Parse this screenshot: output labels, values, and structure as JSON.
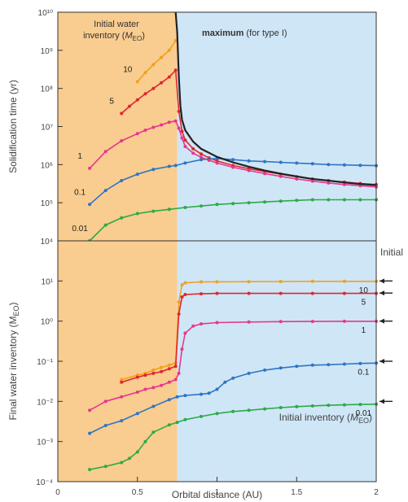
{
  "chart_data": [
    {
      "type": "line",
      "panel": "top",
      "ylabel": "Solidification time (yr)",
      "xlabel": "",
      "xlim": [
        0,
        2
      ],
      "yscale": "log",
      "ylim": [
        10000,
        10000000000
      ],
      "y_tick_labels": [
        "10⁴",
        "10⁵",
        "10⁶",
        "10⁷",
        "10⁸",
        "10⁹",
        "10¹⁰"
      ],
      "shaded_regions": [
        {
          "x": [
            0,
            0.75
          ],
          "color": "#f9cc8f"
        },
        {
          "x": [
            0.75,
            2
          ],
          "color": "#cfe6f6"
        }
      ],
      "annotations": {
        "region_label_line1": "Initial water",
        "region_label_line2": "inventory (",
        "region_label_unit": "M",
        "region_label_sub": "EO",
        "region_label_close": ")",
        "max_bold": "maximum",
        "max_rest": " (for type I)"
      },
      "series": [
        {
          "name": "10",
          "color": "#f2a01e",
          "x": [
            0.5,
            0.55,
            0.6,
            0.65,
            0.7,
            0.74
          ],
          "y": [
            150000000,
            260000000,
            420000000,
            650000000,
            1000000000,
            1800000000
          ]
        },
        {
          "name": "5",
          "color": "#e0262e",
          "x": [
            0.4,
            0.45,
            0.5,
            0.55,
            0.6,
            0.65,
            0.7,
            0.74,
            0.76,
            0.78,
            0.8,
            0.85,
            0.9,
            0.95,
            1.0,
            1.1,
            1.2,
            1.3,
            1.4,
            1.5,
            1.6,
            1.7,
            1.8,
            1.9,
            2.0
          ],
          "y": [
            22000000,
            34000000,
            50000000,
            72000000,
            100000000,
            140000000,
            200000000,
            300000000,
            25000000,
            7500000,
            4400000,
            2600000,
            1900000,
            1500000,
            1250000,
            950000,
            780000,
            660000,
            560000,
            480000,
            420000,
            380000,
            350000,
            320000,
            300000
          ]
        },
        {
          "name": "1",
          "color": "#e8368e",
          "x": [
            0.2,
            0.3,
            0.4,
            0.5,
            0.55,
            0.6,
            0.65,
            0.7,
            0.74,
            0.76,
            0.78,
            0.8,
            0.85,
            0.9,
            0.95,
            1.0,
            1.1,
            1.2,
            1.3,
            1.4,
            1.5,
            1.6,
            1.7,
            1.8,
            1.9,
            2.0
          ],
          "y": [
            800000,
            2200000,
            4200000,
            6500000,
            8000000,
            9500000,
            11000000,
            13000000,
            14000000,
            9000000,
            5000000,
            3000000,
            2000000,
            1550000,
            1300000,
            1100000,
            850000,
            700000,
            580000,
            490000,
            420000,
            370000,
            330000,
            300000,
            280000,
            260000
          ]
        },
        {
          "name": "0.1",
          "color": "#2f75c3",
          "x": [
            0.2,
            0.3,
            0.4,
            0.5,
            0.6,
            0.7,
            0.74,
            0.8,
            0.9,
            1.0,
            1.1,
            1.2,
            1.3,
            1.4,
            1.5,
            1.6,
            1.7,
            1.8,
            1.9,
            2.0
          ],
          "y": [
            90000,
            210000,
            380000,
            560000,
            750000,
            900000,
            950000,
            1100000,
            1350000,
            1450000,
            1350000,
            1250000,
            1200000,
            1150000,
            1100000,
            1050000,
            1000000,
            980000,
            960000,
            940000
          ]
        },
        {
          "name": "0.01",
          "color": "#2bab45",
          "x": [
            0.2,
            0.3,
            0.4,
            0.5,
            0.6,
            0.7,
            0.8,
            0.9,
            1.0,
            1.1,
            1.2,
            1.3,
            1.4,
            1.5,
            1.6,
            1.7,
            1.8,
            1.9,
            2.0
          ],
          "y": [
            10000,
            26000,
            40000,
            52000,
            60000,
            67000,
            75000,
            82000,
            90000,
            95000,
            100000,
            105000,
            110000,
            115000,
            120000,
            120000,
            120000,
            120000,
            120000
          ]
        },
        {
          "name": "",
          "role": "maximum",
          "color": "#222222",
          "x": [
            0.74,
            0.75,
            0.76,
            0.77,
            0.78,
            0.8,
            0.85,
            0.9,
            1.0,
            1.1,
            1.2,
            1.3,
            1.4,
            1.5,
            1.6,
            1.7,
            1.8,
            1.9,
            2.0
          ],
          "y": [
            10000000000,
            3000000000,
            200000000,
            35000000,
            15000000,
            8000000,
            4000000,
            2600000,
            1600000,
            1150000,
            880000,
            700000,
            580000,
            490000,
            420000,
            380000,
            340000,
            310000,
            290000
          ]
        }
      ]
    },
    {
      "type": "line",
      "panel": "bottom",
      "ylabel": "Final water inventory (M",
      "ylabel_sub": "EO",
      "ylabel_close": ")",
      "xlabel": "Orbital distance (AU)",
      "xlim": [
        0,
        2
      ],
      "x_tick_labels": [
        "0",
        "0.5",
        "1",
        "1.5",
        "2"
      ],
      "yscale": "log",
      "ylim": [
        0.0001,
        100
      ],
      "y_tick_labels": [
        "10⁻⁴",
        "10⁻³",
        "10⁻²",
        "10⁻¹",
        "10⁰",
        "10¹"
      ],
      "shaded_regions": [
        {
          "x": [
            0,
            0.75
          ],
          "color": "#f9cc8f"
        },
        {
          "x": [
            0.75,
            2
          ],
          "color": "#cfe6f6"
        }
      ],
      "annotations": {
        "legend_prefix": "Initial inventory (",
        "legend_unit": "M",
        "legend_sub": "EO",
        "legend_close": ")",
        "right_edge_text": "Initial"
      },
      "initial_inventory_arrows": [
        10,
        5,
        1,
        0.1,
        0.01
      ],
      "series": [
        {
          "name": "10",
          "color": "#f2a01e",
          "x": [
            0.4,
            0.5,
            0.55,
            0.6,
            0.65,
            0.7,
            0.74,
            0.76,
            0.78,
            0.8,
            0.9,
            1.0,
            1.2,
            1.4,
            1.6,
            1.8,
            2.0
          ],
          "y": [
            0.035,
            0.045,
            0.05,
            0.06,
            0.07,
            0.08,
            0.09,
            3,
            8,
            9,
            9.5,
            9.5,
            9.6,
            9.7,
            9.8,
            9.8,
            9.8
          ]
        },
        {
          "name": "5",
          "color": "#e0262e",
          "x": [
            0.4,
            0.5,
            0.55,
            0.6,
            0.65,
            0.7,
            0.74,
            0.76,
            0.78,
            0.8,
            0.9,
            1.0,
            1.2,
            1.4,
            1.6,
            1.8,
            2.0
          ],
          "y": [
            0.03,
            0.04,
            0.045,
            0.05,
            0.055,
            0.065,
            0.075,
            1.5,
            4,
            4.6,
            4.8,
            4.9,
            4.9,
            4.9,
            4.9,
            4.9,
            4.9
          ]
        },
        {
          "name": "1",
          "color": "#e8368e",
          "x": [
            0.2,
            0.3,
            0.4,
            0.5,
            0.55,
            0.6,
            0.65,
            0.7,
            0.74,
            0.76,
            0.78,
            0.8,
            0.85,
            0.9,
            1.0,
            1.2,
            1.4,
            1.6,
            1.8,
            2.0
          ],
          "y": [
            0.006,
            0.01,
            0.013,
            0.017,
            0.02,
            0.022,
            0.025,
            0.03,
            0.035,
            0.05,
            0.2,
            0.5,
            0.75,
            0.85,
            0.92,
            0.95,
            0.97,
            0.98,
            0.99,
            0.99
          ]
        },
        {
          "name": "0.1",
          "color": "#2f75c3",
          "x": [
            0.2,
            0.3,
            0.4,
            0.5,
            0.6,
            0.7,
            0.75,
            0.8,
            0.9,
            0.95,
            1.0,
            1.05,
            1.1,
            1.2,
            1.3,
            1.4,
            1.5,
            1.6,
            1.7,
            1.8,
            1.9,
            2.0
          ],
          "y": [
            0.0016,
            0.0025,
            0.0033,
            0.005,
            0.0075,
            0.011,
            0.013,
            0.014,
            0.015,
            0.016,
            0.02,
            0.03,
            0.038,
            0.05,
            0.06,
            0.068,
            0.075,
            0.08,
            0.082,
            0.085,
            0.088,
            0.09
          ]
        },
        {
          "name": "0.01",
          "color": "#2bab45",
          "x": [
            0.2,
            0.3,
            0.4,
            0.45,
            0.5,
            0.55,
            0.6,
            0.7,
            0.75,
            0.8,
            0.9,
            1.0,
            1.1,
            1.2,
            1.3,
            1.4,
            1.5,
            1.6,
            1.7,
            1.8,
            1.9,
            2.0
          ],
          "y": [
            0.0002,
            0.00024,
            0.0003,
            0.00038,
            0.00055,
            0.001,
            0.0017,
            0.0026,
            0.003,
            0.0035,
            0.0042,
            0.005,
            0.0056,
            0.006,
            0.0065,
            0.007,
            0.0074,
            0.0077,
            0.008,
            0.0082,
            0.0084,
            0.0085
          ]
        }
      ]
    }
  ]
}
